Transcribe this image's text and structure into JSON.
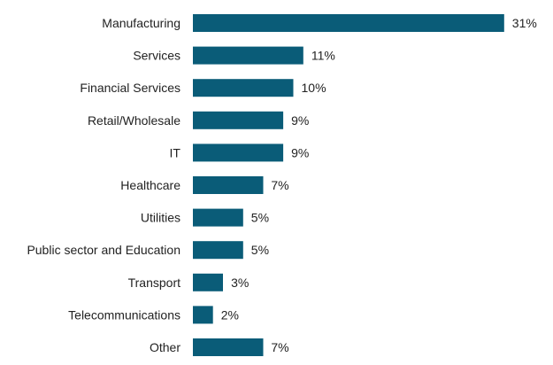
{
  "chart_data": {
    "type": "bar",
    "orientation": "horizontal",
    "categories": [
      "Manufacturing",
      "Services",
      "Financial Services",
      "Retail/Wholesale",
      "IT",
      "Healthcare",
      "Utilities",
      "Public sector and Education",
      "Transport",
      "Telecommunications",
      "Other"
    ],
    "values": [
      31,
      11,
      10,
      9,
      9,
      7,
      5,
      5,
      3,
      2,
      7
    ],
    "value_labels": [
      "31%",
      "11%",
      "10%",
      "9%",
      "9%",
      "7%",
      "5%",
      "5%",
      "3%",
      "2%",
      "7%"
    ],
    "bar_color": "#0a5c78",
    "grid": false,
    "legend": "none"
  }
}
